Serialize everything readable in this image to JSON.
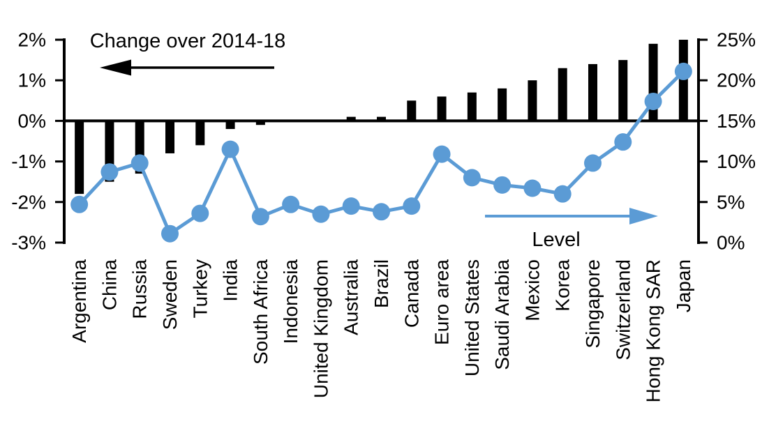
{
  "chart_data": {
    "type": "combo_bar_line",
    "title": "",
    "background": "#FFFFFF",
    "grid": false,
    "legend_position": "none",
    "categories": [
      "Argentina",
      "China",
      "Russia",
      "Sweden",
      "Turkey",
      "India",
      "South Africa",
      "Indonesia",
      "United Kingdom",
      "Australia",
      "Brazil",
      "Canada",
      "Euro area",
      "United States",
      "Saudi Arabia",
      "Mexico",
      "Korea",
      "Singapore",
      "Switzerland",
      "Hong Kong SAR",
      "Japan"
    ],
    "series": [
      {
        "name": "Change over 2014-18",
        "type": "bar",
        "axis": "left",
        "color": "#000000",
        "values": [
          -1.8,
          -1.5,
          -1.3,
          -0.8,
          -0.6,
          -0.2,
          -0.1,
          0,
          0,
          0.1,
          0.1,
          0.5,
          0.6,
          0.7,
          0.8,
          1.0,
          1.3,
          1.4,
          1.5,
          1.9,
          2.0
        ]
      },
      {
        "name": "Level",
        "type": "line",
        "axis": "right",
        "color": "#5B9BD5",
        "values": [
          4.7,
          8.7,
          9.8,
          1.1,
          3.6,
          11.5,
          3.2,
          4.7,
          3.5,
          4.5,
          3.8,
          4.5,
          10.9,
          8.0,
          7.1,
          6.7,
          6.0,
          9.8,
          12.4,
          17.4,
          21.1
        ]
      }
    ],
    "left_axis": {
      "ticks": [
        "2%",
        "1%",
        "0%",
        "-1%",
        "-2%",
        "-3%"
      ],
      "values": [
        2,
        1,
        0,
        -1,
        -2,
        -3
      ],
      "max": 2,
      "min": -3
    },
    "right_axis": {
      "ticks": [
        "25%",
        "20%",
        "15%",
        "10%",
        "5%",
        "0%"
      ],
      "values": [
        25,
        20,
        15,
        10,
        5,
        0
      ],
      "max": 25,
      "min": 0
    },
    "annotations": {
      "bar_label": "Change over 2014-18",
      "line_label": "Level"
    }
  }
}
